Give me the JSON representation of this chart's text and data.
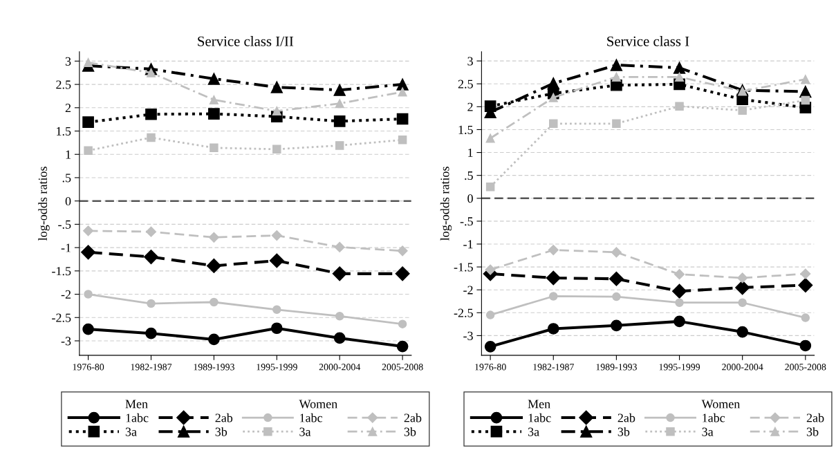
{
  "chart_data": [
    {
      "type": "line",
      "title": "Service class I/II",
      "ylabel": "log-odds ratios",
      "categories": [
        "1976-80",
        "1982-1987",
        "1989-1993",
        "1995-1999",
        "2000-2004",
        "2005-2008"
      ],
      "series": [
        {
          "name": "1abc",
          "color": "#000000",
          "marker": "circle",
          "line_style": "solid",
          "values": [
            -2.75,
            -2.84,
            -2.97,
            -2.73,
            -2.94,
            -3.12
          ]
        },
        {
          "name": "2ab",
          "color": "#000000",
          "marker": "diamond",
          "line_style": "dashed",
          "values": [
            -1.1,
            -1.2,
            -1.39,
            -1.28,
            -1.56,
            -1.56
          ]
        },
        {
          "name": "3a",
          "color": "#000000",
          "marker": "square",
          "line_style": "dotted",
          "values": [
            1.69,
            1.86,
            1.87,
            1.81,
            1.71,
            1.76
          ]
        },
        {
          "name": "3b",
          "color": "#000000",
          "marker": "triangle",
          "line_style": "dashdot",
          "values": [
            2.9,
            2.83,
            2.62,
            2.44,
            2.38,
            2.5
          ]
        },
        {
          "name": "1abc",
          "color": "#bfbfbf",
          "marker": "circle",
          "line_style": "solid",
          "values": [
            -2.0,
            -2.2,
            -2.17,
            -2.33,
            -2.47,
            -2.64
          ]
        },
        {
          "name": "2ab",
          "color": "#bfbfbf",
          "marker": "diamond",
          "line_style": "dashed",
          "values": [
            -0.64,
            -0.66,
            -0.78,
            -0.74,
            -0.99,
            -1.07
          ]
        },
        {
          "name": "3a",
          "color": "#bfbfbf",
          "marker": "square",
          "line_style": "dotted",
          "values": [
            1.08,
            1.36,
            1.14,
            1.11,
            1.19,
            1.31
          ]
        },
        {
          "name": "3b",
          "color": "#bfbfbf",
          "marker": "triangle",
          "line_style": "dashdot",
          "values": [
            2.97,
            2.75,
            2.17,
            1.93,
            2.09,
            2.34
          ]
        }
      ],
      "ylim": [
        -3.31,
        3.2
      ],
      "yticks": [
        -3,
        {
          "value": -2.5,
          "label": "-2.5"
        },
        -2,
        {
          "value": -1.5,
          "label": "-1.5"
        },
        -1,
        {
          "value": -0.5,
          "label": "-.5"
        },
        0,
        {
          "value": 0.5,
          "label": ".5"
        },
        1,
        {
          "value": 1.5,
          "label": "1.5"
        },
        2,
        {
          "value": 2.5,
          "label": "2.5"
        },
        3
      ],
      "grid": "y",
      "legend": "bottom",
      "annotations": [
        "Men",
        "Women"
      ],
      "ref_lines": [
        {
          "axis": "y",
          "value": 0,
          "color": "#555555",
          "line_style": "dashed"
        }
      ]
    },
    {
      "type": "line",
      "title": "Service class I",
      "ylabel": "log-odds ratios",
      "categories": [
        "1976-80",
        "1982-1987",
        "1989-1993",
        "1995-1999",
        "2000-2004",
        "2005-2008"
      ],
      "series": [
        {
          "name": "1abc",
          "color": "#000000",
          "marker": "circle",
          "line_style": "solid",
          "values": [
            -3.24,
            -2.85,
            -2.78,
            -2.69,
            -2.92,
            -3.22
          ]
        },
        {
          "name": "2ab",
          "color": "#000000",
          "marker": "diamond",
          "line_style": "dashed",
          "values": [
            -1.65,
            -1.74,
            -1.76,
            -2.03,
            -1.95,
            -1.9
          ]
        },
        {
          "name": "3a",
          "color": "#000000",
          "marker": "square",
          "line_style": "dotted",
          "values": [
            2.01,
            2.29,
            2.47,
            2.49,
            2.16,
            1.98
          ]
        },
        {
          "name": "3b",
          "color": "#000000",
          "marker": "triangle",
          "line_style": "dashdot",
          "values": [
            1.88,
            2.51,
            2.91,
            2.85,
            2.36,
            2.33
          ]
        },
        {
          "name": "1abc",
          "color": "#bfbfbf",
          "marker": "circle",
          "line_style": "solid",
          "values": [
            -2.55,
            -2.14,
            -2.15,
            -2.28,
            -2.28,
            -2.61
          ]
        },
        {
          "name": "2ab",
          "color": "#bfbfbf",
          "marker": "diamond",
          "line_style": "dashed",
          "values": [
            -1.56,
            -1.13,
            -1.18,
            -1.66,
            -1.74,
            -1.65
          ]
        },
        {
          "name": "3a",
          "color": "#bfbfbf",
          "marker": "square",
          "line_style": "dotted",
          "values": [
            0.25,
            1.63,
            1.63,
            2.01,
            1.92,
            2.14
          ]
        },
        {
          "name": "3b",
          "color": "#bfbfbf",
          "marker": "triangle",
          "line_style": "dashdot",
          "values": [
            1.31,
            2.2,
            2.65,
            2.65,
            2.34,
            2.6
          ]
        }
      ],
      "ylim": [
        -3.43,
        3.2
      ],
      "yticks": [
        -3,
        {
          "value": -2.5,
          "label": "-2.5"
        },
        -2,
        {
          "value": -1.5,
          "label": "-1.5"
        },
        -1,
        {
          "value": -0.5,
          "label": "-.5"
        },
        0,
        {
          "value": 0.5,
          "label": ".5"
        },
        1,
        {
          "value": 1.5,
          "label": "1.5"
        },
        2,
        {
          "value": 2.5,
          "label": "2.5"
        },
        3
      ],
      "grid": "y",
      "legend": "bottom",
      "annotations": [
        "Men",
        "Women"
      ],
      "ref_lines": [
        {
          "axis": "y",
          "value": 0,
          "color": "#555555",
          "line_style": "dashed"
        }
      ]
    }
  ]
}
